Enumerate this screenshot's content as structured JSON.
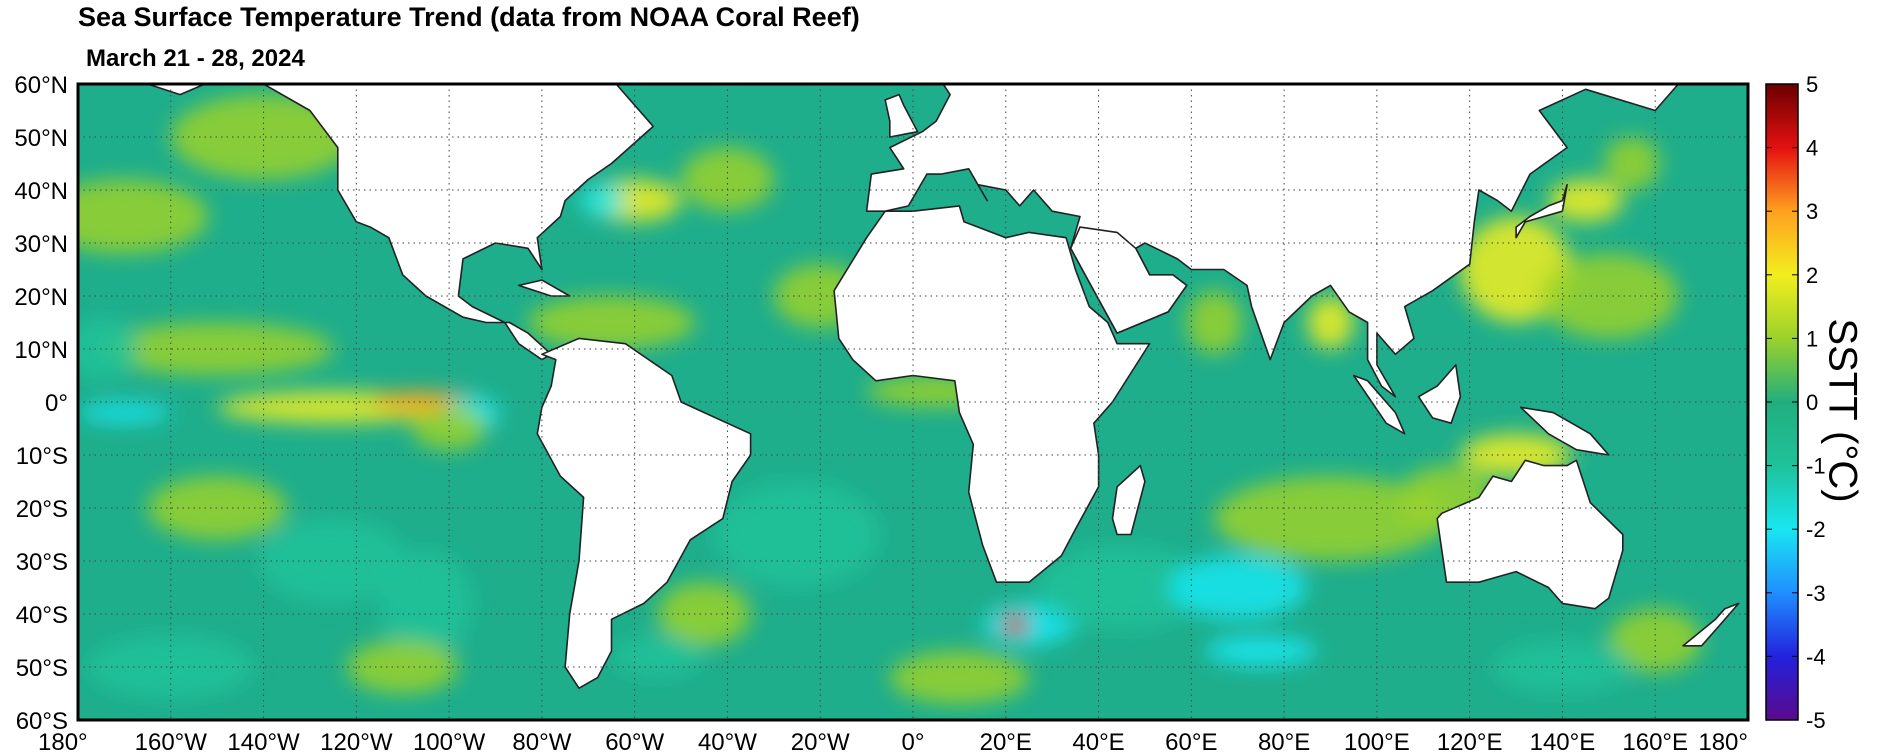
{
  "title": "Sea Surface Temperature Trend (data from NOAA Coral Reef)",
  "subtitle": "March 21 - 28, 2024",
  "map": {
    "projection": "equirectangular",
    "lon_range": [
      -180,
      180
    ],
    "lat_range": [
      -60,
      60
    ],
    "grid": "dotted",
    "land_color": "#ffffff",
    "ocean_base_color": "#1fae8c",
    "lat_tick_labels": [
      "60°N",
      "50°N",
      "40°N",
      "30°N",
      "20°N",
      "10°N",
      "0°",
      "10°S",
      "20°S",
      "30°S",
      "40°S",
      "50°S",
      "60°S"
    ],
    "lon_tick_labels": [
      "180°",
      "160°W",
      "140°W",
      "120°W",
      "100°W",
      "80°W",
      "60°W",
      "40°W",
      "20°W",
      "0°",
      "20°E",
      "40°E",
      "60°E",
      "80°E",
      "100°E",
      "120°E",
      "140°E",
      "160°E",
      "180°"
    ]
  },
  "colorbar": {
    "label": "SSTT (°C)",
    "min": -5,
    "max": 5,
    "tick_labels": [
      "5",
      "4",
      "3",
      "2",
      "1",
      "0",
      "-1",
      "-2",
      "-3",
      "-4",
      "-5"
    ],
    "stops": [
      "#5a0a8c",
      "#2222dd",
      "#1f8fff",
      "#19e6f0",
      "#1fc29a",
      "#21ae7e",
      "#9bd22a",
      "#f2ee1e",
      "#ffa020",
      "#e41010",
      "#6a0000"
    ]
  }
}
